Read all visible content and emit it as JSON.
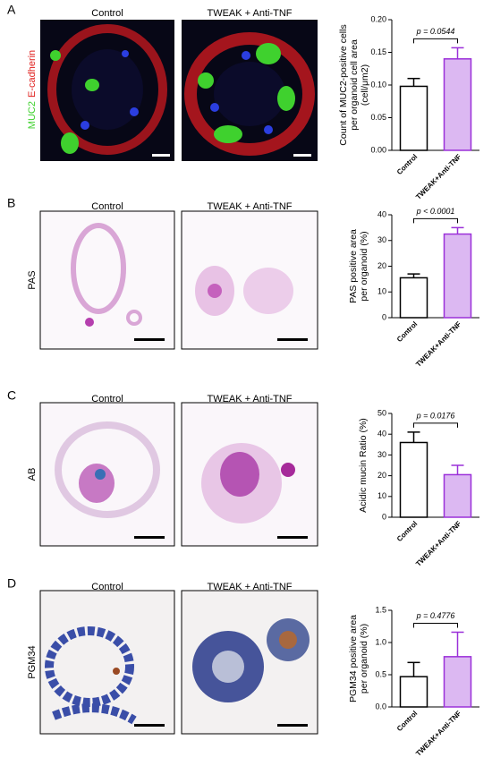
{
  "panels": [
    {
      "letter": "A",
      "image_titles": [
        "Control",
        "TWEAK + Anti-TNF"
      ],
      "stain_labels": [
        "MUC2",
        "E-cadherin"
      ]
    },
    {
      "letter": "B",
      "image_titles": [
        "Control",
        "TWEAK + Anti-TNF"
      ],
      "stain_labels": [
        "PAS"
      ]
    },
    {
      "letter": "C",
      "image_titles": [
        "Control",
        "TWEAK + Anti-TNF"
      ],
      "stain_labels": [
        "AB"
      ]
    },
    {
      "letter": "D",
      "image_titles": [
        "Control",
        "TWEAK + Anti-TNF"
      ],
      "stain_labels": [
        "PGM34"
      ]
    }
  ],
  "chart_data": [
    {
      "type": "bar",
      "ylabel": [
        "Count of MUC2-positive cells",
        "per organoid cell area",
        "(cell/μm2)"
      ],
      "annotation": "p = 0.0544",
      "categories": [
        "Control",
        "TWEAK+Anti-TNF"
      ],
      "series": [
        {
          "values": [
            0.098,
            0.14
          ],
          "errors": [
            0.012,
            0.017
          ],
          "fill": [
            "#ffffff",
            "#dcb8f2"
          ],
          "color": [
            "#000000",
            "#9b30d9"
          ]
        }
      ],
      "ylim": [
        0,
        0.2
      ],
      "yticks": [
        {
          "value": 0,
          "label": "0.00"
        },
        0.05,
        {
          "value": 0.1,
          "label": "0.10"
        },
        0.15,
        {
          "value": 0.2,
          "label": "0.20"
        }
      ]
    },
    {
      "type": "bar",
      "ylabel": [
        "PAS positive area",
        "per organoid (%)"
      ],
      "annotation": "p < 0.0001",
      "categories": [
        "Control",
        "TWEAK+Anti-TNF"
      ],
      "series": [
        {
          "values": [
            15.5,
            32.5
          ],
          "errors": [
            1.5,
            2.5
          ],
          "fill": [
            "#ffffff",
            "#dcb8f2"
          ],
          "color": [
            "#000000",
            "#9b30d9"
          ]
        }
      ],
      "ylim": [
        0,
        40
      ],
      "yticks": [
        0,
        10,
        20,
        30,
        40
      ]
    },
    {
      "type": "bar",
      "ylabel": [
        "Acidic mucin Ratio (%)"
      ],
      "annotation": "p = 0.0176",
      "categories": [
        "Control",
        "TWEAK+Anti-TNF"
      ],
      "series": [
        {
          "values": [
            36,
            20.5
          ],
          "errors": [
            5,
            4.5
          ],
          "fill": [
            "#ffffff",
            "#dcb8f2"
          ],
          "color": [
            "#000000",
            "#9b30d9"
          ]
        }
      ],
      "ylim": [
        0,
        50
      ],
      "yticks": [
        0,
        10,
        20,
        30,
        40,
        50
      ]
    },
    {
      "type": "bar",
      "ylabel": [
        "PGM34 positive area",
        "per organoid (%)"
      ],
      "annotation": "p = 0.4776",
      "categories": [
        "Control",
        "TWEAK+Anti-TNF"
      ],
      "series": [
        {
          "values": [
            0.47,
            0.78
          ],
          "errors": [
            0.22,
            0.38
          ],
          "fill": [
            "#ffffff",
            "#dcb8f2"
          ],
          "color": [
            "#000000",
            "#9b30d9"
          ]
        }
      ],
      "ylim": [
        0,
        1.5
      ],
      "yticks": [
        {
          "value": 0,
          "label": "0.0"
        },
        0.5,
        {
          "value": 1,
          "label": "1.0"
        },
        1.5
      ]
    }
  ]
}
